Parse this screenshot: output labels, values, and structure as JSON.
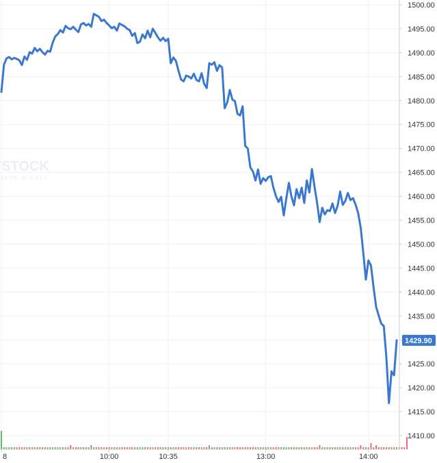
{
  "watermark": {
    "main": "TSTOCK",
    "sub": "tech always"
  },
  "chart_data": {
    "type": "line",
    "title": "",
    "xlabel": "",
    "ylabel": "",
    "ylim": [
      1406,
      1501
    ],
    "y_ticks": [
      1410,
      1415,
      1420,
      1425,
      1430,
      1435,
      1440,
      1445,
      1450,
      1455,
      1460,
      1465,
      1470,
      1475,
      1480,
      1485,
      1490,
      1495,
      1500
    ],
    "y_tick_labels": [
      "1410.00",
      "1415.00",
      "1420.00",
      "1425.00",
      "1430.00",
      "1435.00",
      "1440.00",
      "1445.00",
      "1450.00",
      "1455.00",
      "1460.00",
      "1465.00",
      "1470.00",
      "1475.00",
      "1480.00",
      "1485.00",
      "1490.00",
      "1495.00",
      "1500.00"
    ],
    "x_ticks": [
      {
        "index": 0,
        "label": "8"
      },
      {
        "index": 42,
        "label": "10:00"
      },
      {
        "index": 65,
        "label": "10:35"
      },
      {
        "index": 103,
        "label": "13:00"
      },
      {
        "index": 143,
        "label": "14:00"
      }
    ],
    "last_value_label": "1429.90",
    "grid": true,
    "colors": {
      "line": "#3a78d0",
      "grid": "#eef0f4",
      "up_volume": "#49b04f",
      "down_volume": "#e15759",
      "badge": "#3a78d0"
    },
    "series": [
      {
        "values": [
          1481.8,
          1487.5,
          1488.8,
          1489.1,
          1488.6,
          1488.9,
          1488.7,
          1488.4,
          1487.4,
          1489.2,
          1488.5,
          1490.1,
          1489.8,
          1491.0,
          1490.3,
          1490.8,
          1490.1,
          1489.6,
          1490.4,
          1490.2,
          1492.1,
          1493.4,
          1493.9,
          1494.7,
          1494.2,
          1495.6,
          1495.1,
          1494.9,
          1495.4,
          1494.8,
          1494.3,
          1495.9,
          1496.2,
          1495.7,
          1496.0,
          1495.4,
          1498.1,
          1497.8,
          1497.5,
          1496.6,
          1496.9,
          1496.2,
          1495.7,
          1495.1,
          1495.4,
          1494.6,
          1496.1,
          1495.8,
          1495.5,
          1495.0,
          1494.7,
          1493.5,
          1494.1,
          1492.0,
          1492.3,
          1493.8,
          1493.0,
          1494.6,
          1493.2,
          1495.0,
          1494.1,
          1493.2,
          1492.5,
          1493.1,
          1492.4,
          1492.9,
          1487.8,
          1489.0,
          1488.3,
          1486.2,
          1484.4,
          1484.0,
          1485.2,
          1485.0,
          1484.6,
          1485.6,
          1484.3,
          1484.0,
          1485.7,
          1483.5,
          1482.6,
          1487.8,
          1487.5,
          1488.0,
          1486.2,
          1487.4,
          1486.9,
          1478.4,
          1479.6,
          1482.2,
          1480.2,
          1479.9,
          1477.2,
          1476.9,
          1478.8,
          1470.5,
          1470.0,
          1466.0,
          1465.2,
          1463.3,
          1465.6,
          1462.6,
          1463.8,
          1463.2,
          1464.0,
          1464.2,
          1461.8,
          1460.0,
          1458.8,
          1459.9,
          1456.0,
          1459.5,
          1462.8,
          1460.0,
          1458.1,
          1461.5,
          1459.6,
          1461.8,
          1458.6,
          1463.3,
          1460.8,
          1465.7,
          1462.0,
          1458.7,
          1454.6,
          1457.6,
          1456.2,
          1457.1,
          1456.9,
          1458.5,
          1456.5,
          1458.0,
          1461.0,
          1458.2,
          1459.0,
          1460.7,
          1459.2,
          1459.6,
          1458.3,
          1456.5,
          1453.4,
          1448.2,
          1442.6,
          1446.6,
          1445.5,
          1441.0,
          1436.9,
          1435.1,
          1433.4,
          1432.9,
          1426.3,
          1416.8,
          1423.4,
          1422.6,
          1429.9
        ]
      }
    ],
    "volume": [
      0.9,
      0.1,
      0.1,
      0.1,
      0.1,
      0.1,
      0.1,
      0.1,
      0.1,
      0.1,
      0.1,
      0.1,
      0.1,
      0.1,
      0.1,
      0.1,
      0.1,
      0.1,
      0.1,
      0.1,
      0.1,
      0.1,
      0.1,
      0.1,
      0.1,
      0.1,
      0.1,
      0.2,
      0.1,
      0.1,
      0.1,
      0.1,
      0.1,
      0.1,
      0.1,
      0.2,
      0.1,
      0.1,
      0.1,
      0.1,
      0.1,
      0.1,
      0.1,
      0.1,
      0.1,
      0.1,
      0.1,
      0.1,
      0.1,
      0.1,
      0.1,
      0.1,
      0.1,
      0.1,
      0.1,
      0.1,
      0.1,
      0.1,
      0.1,
      0.1,
      0.1,
      0.1,
      0.1,
      0.1,
      0.1,
      0.1,
      0.1,
      0.1,
      0.1,
      0.1,
      0.1,
      0.1,
      0.1,
      0.1,
      0.1,
      0.1,
      0.1,
      0.1,
      0.1,
      0.1,
      0.1,
      0.2,
      0.1,
      0.1,
      0.1,
      0.1,
      0.1,
      0.1,
      0.1,
      0.1,
      0.1,
      0.1,
      0.1,
      0.1,
      0.1,
      0.1,
      0.1,
      0.1,
      0.1,
      0.1,
      0.1,
      0.1,
      0.1,
      0.1,
      0.1,
      0.1,
      0.1,
      0.1,
      0.1,
      0.1,
      0.1,
      0.1,
      0.1,
      0.1,
      0.1,
      0.1,
      0.1,
      0.1,
      0.1,
      0.1,
      0.1,
      0.1,
      0.1,
      0.1,
      0.2,
      0.1,
      0.1,
      0.1,
      0.1,
      0.1,
      0.1,
      0.1,
      0.1,
      0.1,
      0.1,
      0.1,
      0.1,
      0.1,
      0.1,
      0.1,
      0.2,
      0.1,
      0.1,
      0.1,
      0.3,
      0.1,
      0.2,
      0.1,
      0.1,
      0.1,
      0.1,
      0.1,
      0.1,
      0.1,
      0.1,
      0.1,
      0.1,
      0.1,
      0.6
    ]
  }
}
